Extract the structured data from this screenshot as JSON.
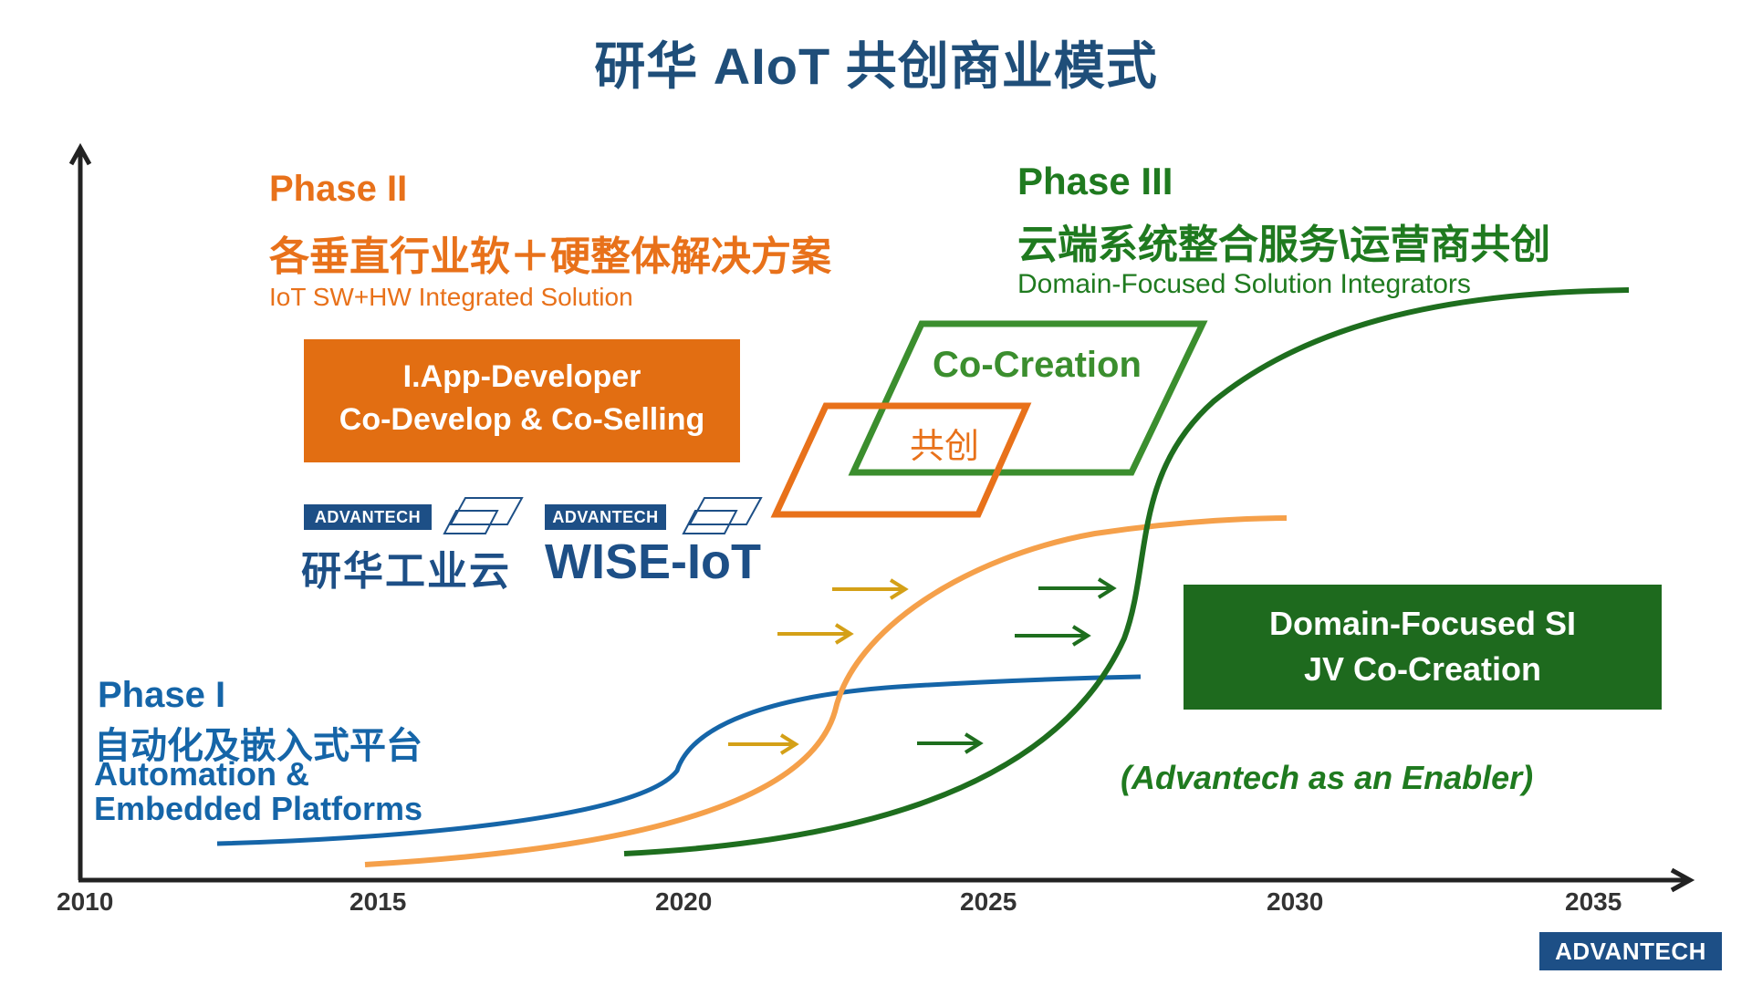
{
  "title": "研华 AIoT 共创商业模式",
  "phase1": {
    "heading": "Phase I",
    "cn": "自动化及嵌入式平台",
    "en_line1": "Automation &",
    "en_line2": "Embedded Platforms"
  },
  "phase2": {
    "heading": "Phase II",
    "cn": "各垂直行业软＋硬整体解决方案",
    "en": "IoT SW+HW Integrated Solution",
    "box_line1": "I.App-Developer",
    "box_line2": "Co-Develop & Co-Selling"
  },
  "phase3": {
    "heading": "Phase III",
    "cn": "云端系统整合服务\\运营商共创",
    "en": "Domain-Focused Solution Integrators",
    "box_line1": "Domain-Focused SI",
    "box_line2": "JV Co-Creation",
    "enabler": "(Advantech as an Enabler)"
  },
  "cocreation": {
    "en": "Co-Creation",
    "cn": "共创"
  },
  "logos": {
    "advantech": "ADVANTECH",
    "cloud_cn": "研华工业云",
    "wise": "WISE-IoT",
    "footer": "ADVANTECH"
  },
  "timeline": {
    "years": [
      "2010",
      "2015",
      "2020",
      "2025",
      "2030",
      "2035"
    ]
  },
  "colors": {
    "title": "#1f4e79",
    "phase1": "#1565a8",
    "phase2": "#e8711a",
    "phase3": "#1f7a1f",
    "orange_curve": "#f5a04a",
    "arrow_gold": "#d4a017",
    "logo_blue": "#1d4f86"
  }
}
